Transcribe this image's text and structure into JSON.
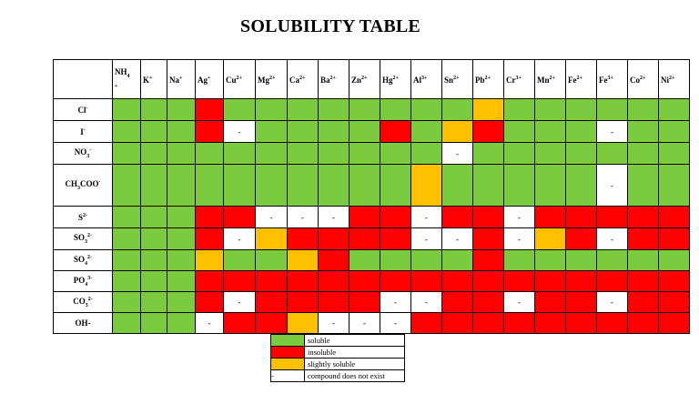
{
  "title": "SOLUBILITY TABLE",
  "colors": {
    "soluble": "#7ACB3E",
    "insoluble": "#FF0000",
    "slightly_soluble": "#FFC000",
    "not_exist": "#FFFFFF"
  },
  "cations": [
    {
      "base": "NH",
      "sub": "4",
      "sup": "+"
    },
    {
      "base": "K",
      "sub": "",
      "sup": "+"
    },
    {
      "base": "Na",
      "sub": "",
      "sup": "+"
    },
    {
      "base": "Ag",
      "sub": "",
      "sup": "+"
    },
    {
      "base": "Cu",
      "sub": "",
      "sup": "2+"
    },
    {
      "base": "Mg",
      "sub": "",
      "sup": "2+"
    },
    {
      "base": "Ca",
      "sub": "",
      "sup": "2+"
    },
    {
      "base": "Ba",
      "sub": "",
      "sup": "2+"
    },
    {
      "base": "Zn",
      "sub": "",
      "sup": "2+"
    },
    {
      "base": "Hg",
      "sub": "",
      "sup": "2+"
    },
    {
      "base": "Al",
      "sub": "",
      "sup": "3+"
    },
    {
      "base": "Sn",
      "sub": "",
      "sup": "2+"
    },
    {
      "base": "Pb",
      "sub": "",
      "sup": "2+"
    },
    {
      "base": "Cr",
      "sub": "",
      "sup": "3+"
    },
    {
      "base": "Mn",
      "sub": "",
      "sup": "2+"
    },
    {
      "base": "Fe",
      "sub": "",
      "sup": "2+"
    },
    {
      "base": "Fe",
      "sub": "",
      "sup": "3+"
    },
    {
      "base": "Co",
      "sub": "",
      "sup": "2+"
    },
    {
      "base": "Ni",
      "sub": "",
      "sup": "2+"
    }
  ],
  "anions": [
    {
      "base": "Cl",
      "sub": "",
      "sup": "-"
    },
    {
      "base": "I",
      "sub": "",
      "sup": "-"
    },
    {
      "base": "NO",
      "sub": "3",
      "sup": "-"
    },
    {
      "base": "CH",
      "sub": "3",
      "tail": "COO",
      "sup": "-"
    },
    {
      "base": "S",
      "sub": "",
      "sup": "2-"
    },
    {
      "base": "SO",
      "sub": "3",
      "sup": "2-"
    },
    {
      "base": "SO",
      "sub": "4",
      "sup": "2-"
    },
    {
      "base": "PO",
      "sub": "4",
      "sup": "3-"
    },
    {
      "base": "CO",
      "sub": "3",
      "sup": "2-"
    },
    {
      "base": "OH-",
      "sub": "",
      "sup": ""
    }
  ],
  "grid": [
    [
      "s",
      "s",
      "s",
      "i",
      "s",
      "s",
      "s",
      "s",
      "s",
      "s",
      "s",
      "s",
      "ss",
      "s",
      "s",
      "s",
      "s",
      "s",
      "s"
    ],
    [
      "s",
      "s",
      "s",
      "i",
      "n",
      "s",
      "s",
      "s",
      "s",
      "i",
      "s",
      "ss",
      "i",
      "s",
      "s",
      "s",
      "n",
      "s",
      "s"
    ],
    [
      "s",
      "s",
      "s",
      "s",
      "s",
      "s",
      "s",
      "s",
      "s",
      "s",
      "s",
      "n",
      "s",
      "s",
      "s",
      "s",
      "s",
      "s",
      "s"
    ],
    [
      "s",
      "s",
      "s",
      "s",
      "s",
      "s",
      "s",
      "s",
      "s",
      "s",
      "ss",
      "s",
      "s",
      "s",
      "s",
      "s",
      "n",
      "s",
      "s"
    ],
    [
      "s",
      "s",
      "s",
      "i",
      "i",
      "n",
      "n",
      "n",
      "i",
      "i",
      "n",
      "i",
      "i",
      "n",
      "i",
      "i",
      "i",
      "i",
      "i"
    ],
    [
      "s",
      "s",
      "s",
      "i",
      "n",
      "ss",
      "i",
      "i",
      "i",
      "i",
      "n",
      "n",
      "i",
      "n",
      "ss",
      "i",
      "n",
      "i",
      "i"
    ],
    [
      "s",
      "s",
      "s",
      "ss",
      "s",
      "s",
      "ss",
      "i",
      "s",
      "s",
      "s",
      "s",
      "i",
      "s",
      "s",
      "s",
      "s",
      "s",
      "s"
    ],
    [
      "s",
      "s",
      "s",
      "i",
      "i",
      "i",
      "i",
      "i",
      "i",
      "i",
      "i",
      "i",
      "i",
      "i",
      "i",
      "i",
      "i",
      "i",
      "i"
    ],
    [
      "s",
      "s",
      "s",
      "i",
      "n",
      "i",
      "i",
      "i",
      "i",
      "n",
      "n",
      "i",
      "i",
      "n",
      "i",
      "i",
      "n",
      "i",
      "i"
    ],
    [
      "s",
      "s",
      "s",
      "n",
      "i",
      "i",
      "ss",
      "n",
      "n",
      "n",
      "i",
      "i",
      "i",
      "i",
      "i",
      "i",
      "i",
      "i",
      "i"
    ]
  ],
  "legend": [
    {
      "key": "soluble",
      "label": "soluble",
      "mark": ""
    },
    {
      "key": "insoluble",
      "label": "insoluble",
      "mark": ""
    },
    {
      "key": "slightly_soluble",
      "label": "slightly soluble",
      "mark": ""
    },
    {
      "key": "not_exist",
      "label": "compound does not exist",
      "mark": "-"
    }
  ],
  "not_exist_mark": "-"
}
